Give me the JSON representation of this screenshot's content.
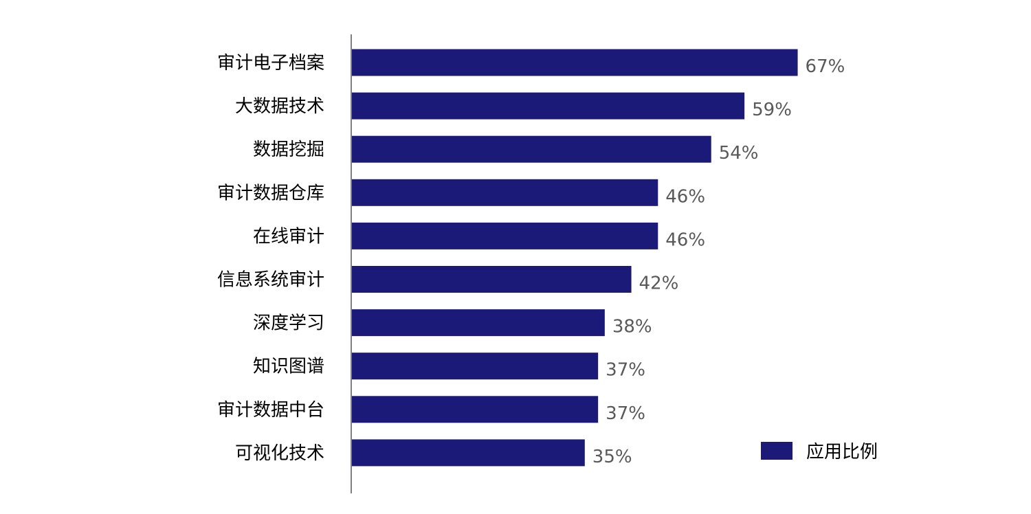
{
  "chart_data": {
    "type": "bar",
    "orientation": "horizontal",
    "title": "",
    "xlabel": "",
    "ylabel": "",
    "categories": [
      "审计电子档案",
      "大数据技术",
      "数据挖掘",
      "审计数据仓库",
      "在线审计",
      "信息系统审计",
      "深度学习",
      "知识图谱",
      "审计数据中台",
      "可视化技术"
    ],
    "series": [
      {
        "name": "应用比例",
        "values": [
          67,
          59,
          54,
          46,
          46,
          42,
          38,
          37,
          37,
          35
        ],
        "value_labels": [
          "67%",
          "59%",
          "54%",
          "46%",
          "46%",
          "42%",
          "38%",
          "37%",
          "37%",
          "35%"
        ],
        "color": "#1b1a78"
      }
    ],
    "xlim": [
      0,
      100
    ],
    "grid": false,
    "legend_position": "bottom-right",
    "axis_color": "#7f7f7f",
    "label_color": "#595959"
  }
}
